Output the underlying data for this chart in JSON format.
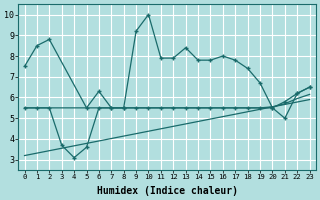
{
  "xlabel": "Humidex (Indice chaleur)",
  "background_color": "#b2dfdf",
  "grid_color": "#d4eeee",
  "line_color": "#1a6b6b",
  "xlim": [
    -0.5,
    23.5
  ],
  "ylim": [
    2.5,
    10.5
  ],
  "xticks": [
    0,
    1,
    2,
    3,
    4,
    5,
    6,
    7,
    8,
    9,
    10,
    11,
    12,
    13,
    14,
    15,
    16,
    17,
    18,
    19,
    20,
    21,
    22,
    23
  ],
  "yticks": [
    3,
    4,
    5,
    6,
    7,
    8,
    9,
    10
  ],
  "line1_x": [
    0,
    1,
    2,
    5,
    6,
    7,
    8,
    9,
    10,
    11,
    12,
    13,
    14,
    15,
    16,
    17,
    18,
    19,
    20,
    21,
    22,
    23
  ],
  "line1_y": [
    7.5,
    8.5,
    8.8,
    5.5,
    6.3,
    5.5,
    5.5,
    9.2,
    10.0,
    7.9,
    7.9,
    8.4,
    7.8,
    7.8,
    8.0,
    7.8,
    7.4,
    6.7,
    5.5,
    5.8,
    6.2,
    6.5
  ],
  "line2_x": [
    0,
    1,
    2,
    3,
    4,
    5,
    6,
    7,
    8,
    9,
    10,
    11,
    12,
    13,
    14,
    15,
    16,
    17,
    18,
    19,
    20,
    21,
    22,
    23
  ],
  "line2_y": [
    5.5,
    5.5,
    5.5,
    3.7,
    3.1,
    3.6,
    5.5,
    5.5,
    5.5,
    5.5,
    5.5,
    5.5,
    5.5,
    5.5,
    5.5,
    5.5,
    5.5,
    5.5,
    5.5,
    5.5,
    5.5,
    5.0,
    6.2,
    6.5
  ],
  "line3_x": [
    0,
    23
  ],
  "line3_y": [
    3.2,
    5.9
  ],
  "line4_x": [
    0,
    19,
    20,
    21,
    22,
    23
  ],
  "line4_y": [
    5.5,
    5.5,
    5.55,
    5.7,
    5.95,
    6.15
  ]
}
